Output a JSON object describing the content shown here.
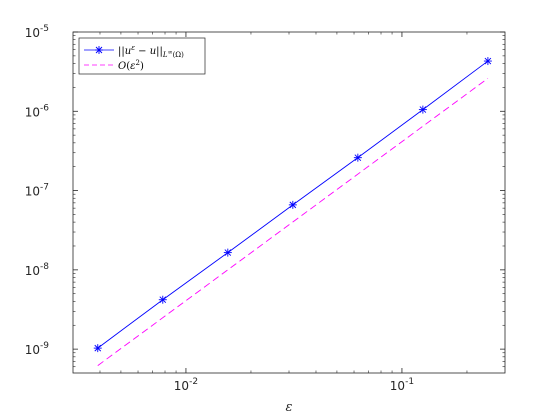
{
  "chart_data": {
    "type": "line",
    "xscale": "log",
    "yscale": "log",
    "xlim": [
      0.003,
      0.3
    ],
    "ylim": [
      5e-10,
      1e-05
    ],
    "xlabel": "ε",
    "ylabel": "",
    "title": "",
    "grid": false,
    "legend_position": "top-left",
    "x_ticks": [
      {
        "value": 0.01,
        "base": "10",
        "exp": "-2"
      },
      {
        "value": 0.1,
        "base": "10",
        "exp": "-1"
      }
    ],
    "y_ticks": [
      {
        "value": 1e-09,
        "base": "10",
        "exp": "-9"
      },
      {
        "value": 1e-08,
        "base": "10",
        "exp": "-8"
      },
      {
        "value": 1e-07,
        "base": "10",
        "exp": "-7"
      },
      {
        "value": 1e-06,
        "base": "10",
        "exp": "-6"
      },
      {
        "value": 1e-05,
        "base": "10",
        "exp": "-5"
      }
    ],
    "series": [
      {
        "name": "||u^ε − u||_{L^∞(Ω)}",
        "color": "#0000ff",
        "line_style": "solid",
        "marker": "asterisk",
        "x": [
          0.00390625,
          0.0078125,
          0.015625,
          0.03125,
          0.0625,
          0.125,
          0.25
        ],
        "y": [
          1.03e-09,
          4.2e-09,
          1.65e-08,
          6.6e-08,
          2.6e-07,
          1.05e-06,
          4.3e-06
        ]
      },
      {
        "name": "O(ε²)",
        "color": "#ff00ff",
        "line_style": "dashed",
        "marker": "none",
        "x": [
          0.00390625,
          0.25
        ],
        "y": [
          6.2e-10,
          2.6e-06
        ]
      }
    ]
  }
}
